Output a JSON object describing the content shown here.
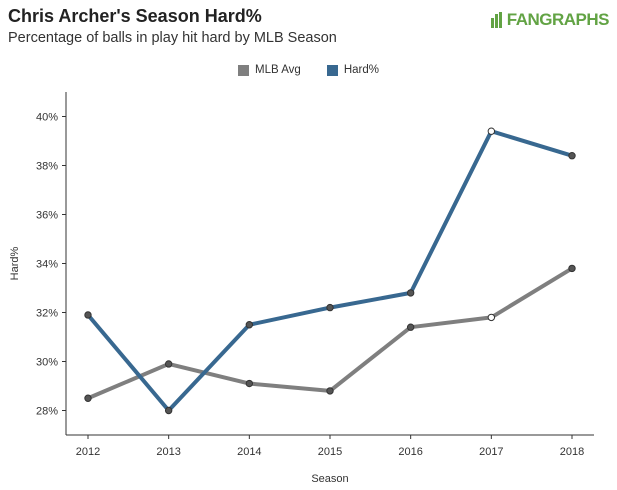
{
  "header": {
    "title": "Chris Archer's Season Hard%",
    "subtitle": "Percentage of balls in play hit hard by MLB Season",
    "logo_text": "FANGRAPHS"
  },
  "colors": {
    "mlb_avg": "#7f7f7f",
    "hard_pct": "#386890",
    "logo": "#62a344"
  },
  "chart_data": {
    "type": "line",
    "x": [
      "2012",
      "2013",
      "2014",
      "2015",
      "2016",
      "2017",
      "2018"
    ],
    "xlabel": "Season",
    "ylabel": "Hard%",
    "ylim": [
      27.0,
      41.0
    ],
    "yticks": [
      28,
      30,
      32,
      34,
      36,
      38,
      40
    ],
    "ytick_labels": [
      "28%",
      "30%",
      "32%",
      "34%",
      "36%",
      "38%",
      "40%"
    ],
    "legend_position": "top-center",
    "grid": false,
    "series": [
      {
        "name": "MLB Avg",
        "values": [
          28.5,
          29.9,
          29.1,
          28.8,
          31.4,
          31.8,
          33.8
        ],
        "color": "#7f7f7f",
        "marker_fill": [
          "#555555",
          "#555555",
          "#555555",
          "#555555",
          "#555555",
          "#ffffff",
          "#555555"
        ]
      },
      {
        "name": "Hard%",
        "values": [
          31.9,
          28.0,
          31.5,
          32.2,
          32.8,
          39.4,
          38.4
        ],
        "color": "#386890",
        "marker_fill": [
          "#555555",
          "#555555",
          "#555555",
          "#555555",
          "#555555",
          "#ffffff",
          "#555555"
        ]
      }
    ]
  }
}
